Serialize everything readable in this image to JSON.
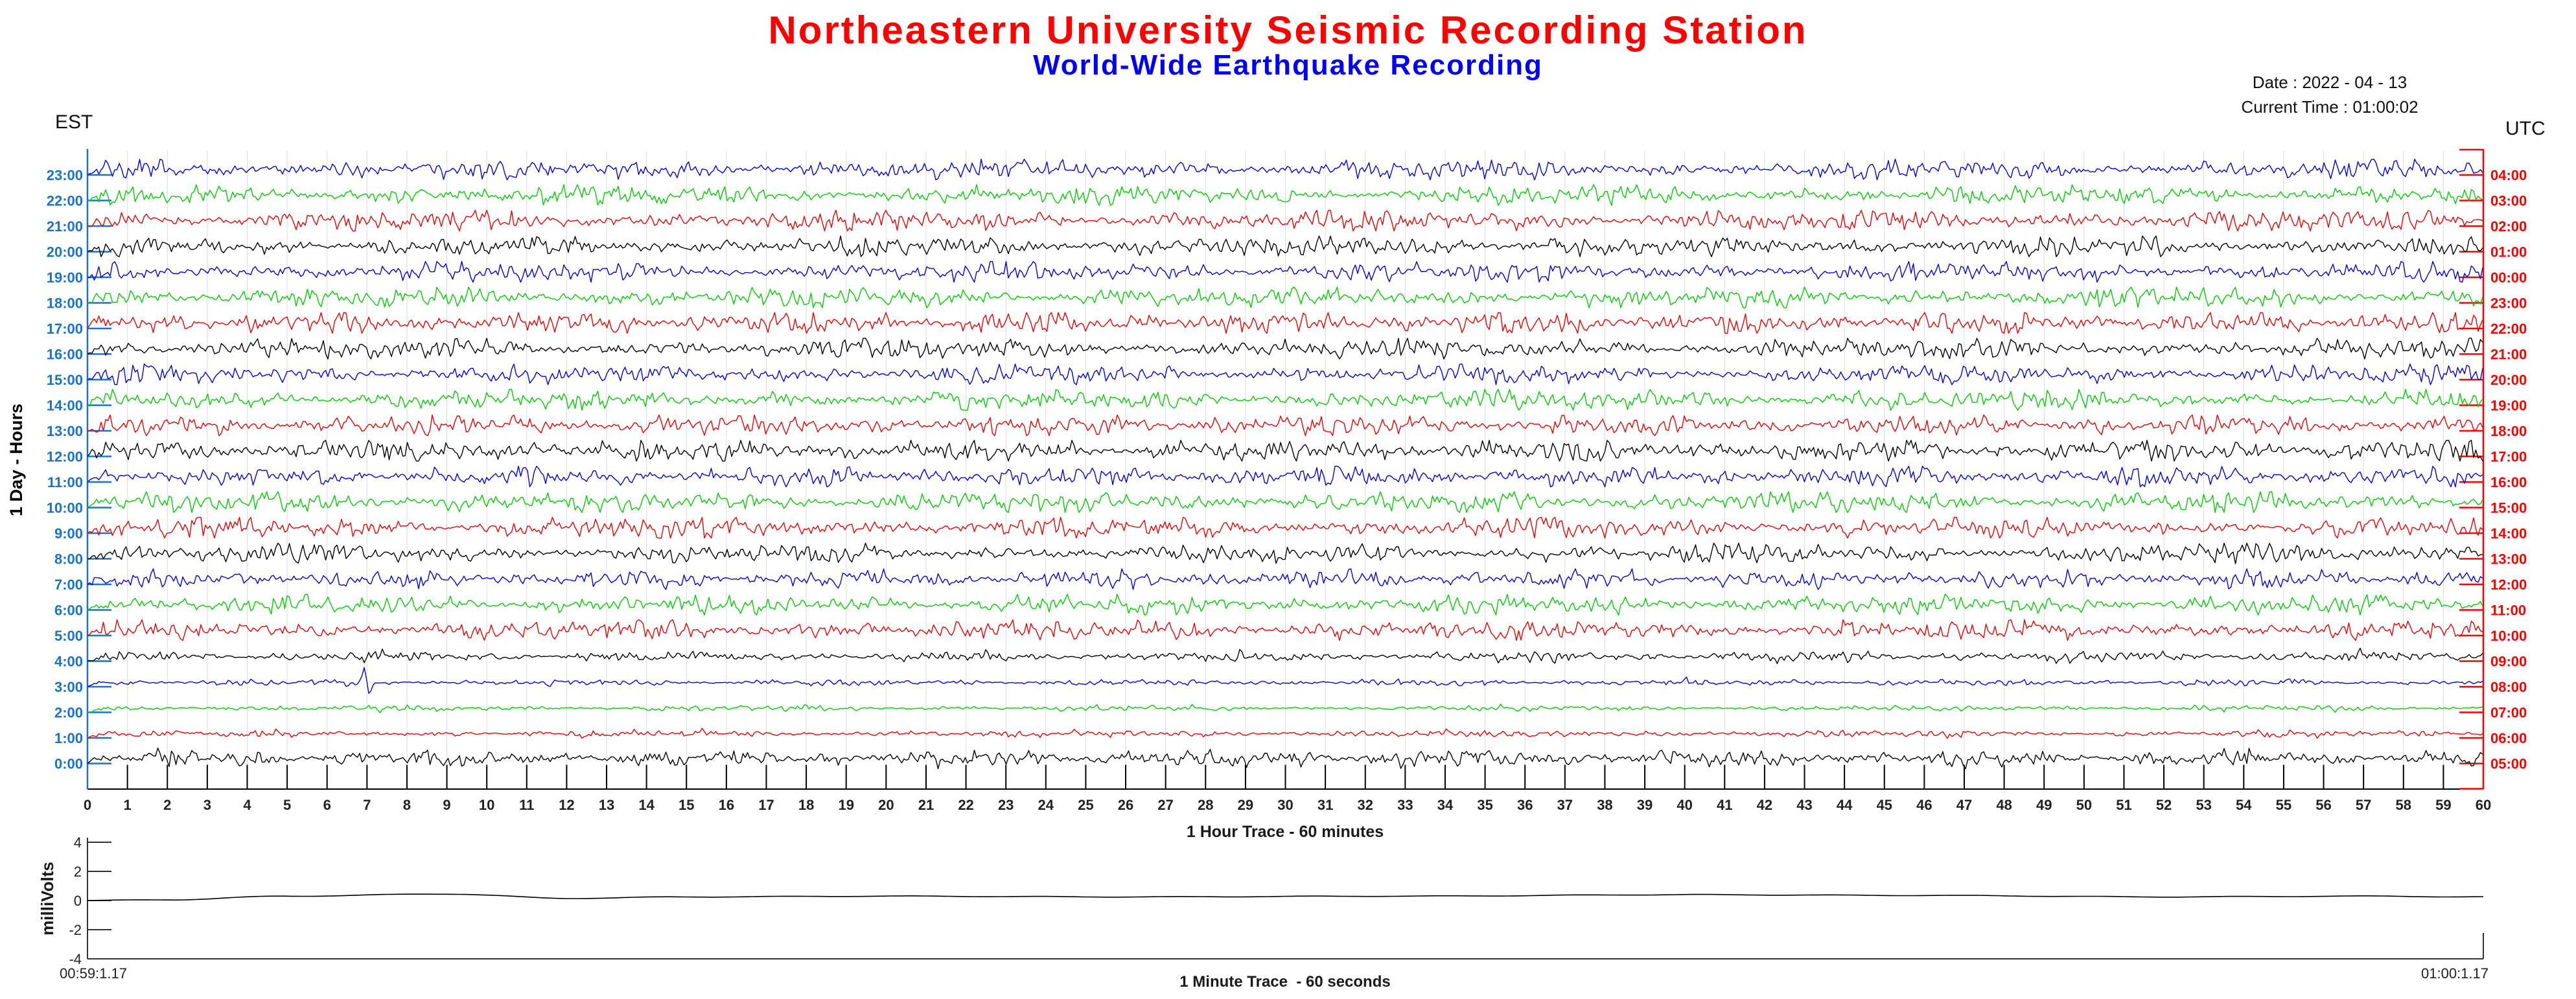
{
  "header": {
    "title": "Northeastern University Seismic Recording Station",
    "title_color": "#ff0000",
    "subtitle": "World-Wide Earthquake Recording",
    "subtitle_color": "#0000ff",
    "date_line": "Date : 2022 - 04 - 13",
    "time_line": "Current Time : 01:00:02",
    "left_timezone": "EST",
    "right_timezone": "UTC"
  },
  "colors": {
    "background": "#ffffff",
    "left_axis": "#1874c8",
    "right_axis": "#fb0000",
    "grid": "#dcdcdc",
    "bottom_axis": "#000000",
    "tick_label": "#222222",
    "trace_palette": {
      "blue": "#0000e6",
      "green": "#00cf00",
      "red": "#ef0000",
      "black": "#000000"
    }
  },
  "chart_data": [
    {
      "id": "helicorder",
      "type": "line",
      "title": "World-Wide Earthquake Recording",
      "xlabel": "1 Hour Trace - 60 minutes",
      "ylabel": "1 Day - Hours",
      "x_range_minutes": [
        0,
        60
      ],
      "x_tick_labels": [
        "0",
        "1",
        "2",
        "3",
        "4",
        "5",
        "6",
        "7",
        "8",
        "9",
        "10",
        "11",
        "12",
        "13",
        "14",
        "15",
        "16",
        "17",
        "18",
        "19",
        "20",
        "21",
        "22",
        "23",
        "24",
        "25",
        "26",
        "27",
        "28",
        "29",
        "30",
        "31",
        "32",
        "33",
        "34",
        "35",
        "36",
        "37",
        "38",
        "39",
        "40",
        "41",
        "42",
        "43",
        "44",
        "45",
        "46",
        "47",
        "48",
        "49",
        "50",
        "51",
        "52",
        "53",
        "54",
        "55",
        "56",
        "57",
        "58",
        "59",
        "60"
      ],
      "grid": {
        "vertical_line_every_minute": true,
        "horizontal": false
      },
      "legend": "none",
      "left_axis_labels_are_est_hours": true,
      "right_axis_labels_are_utc_hours": true,
      "rows_top_to_bottom": [
        {
          "est": "23:00",
          "utc": "04:00",
          "color": "blue",
          "amplitude": 0.95,
          "seed": 9011
        },
        {
          "est": "22:00",
          "utc": "03:00",
          "color": "green",
          "amplitude": 0.95,
          "seed": 4177
        },
        {
          "est": "21:00",
          "utc": "02:00",
          "color": "red",
          "amplitude": 1.0,
          "seed": 7309
        },
        {
          "est": "20:00",
          "utc": "01:00",
          "color": "black",
          "amplitude": 0.92,
          "seed": 2903
        },
        {
          "est": "19:00",
          "utc": "00:00",
          "color": "blue",
          "amplitude": 0.95,
          "seed": 6421
        },
        {
          "est": "18:00",
          "utc": "23:00",
          "color": "green",
          "amplitude": 0.95,
          "seed": 1531
        },
        {
          "est": "17:00",
          "utc": "22:00",
          "color": "red",
          "amplitude": 1.05,
          "seed": 8629
        },
        {
          "est": "16:00",
          "utc": "21:00",
          "color": "black",
          "amplitude": 0.95,
          "seed": 3797
        },
        {
          "est": "15:00",
          "utc": "20:00",
          "color": "blue",
          "amplitude": 0.9,
          "seed": 5519
        },
        {
          "est": "14:00",
          "utc": "19:00",
          "color": "green",
          "amplitude": 0.95,
          "seed": 9473
        },
        {
          "est": "13:00",
          "utc": "18:00",
          "color": "red",
          "amplitude": 1.0,
          "seed": 2251
        },
        {
          "est": "12:00",
          "utc": "17:00",
          "color": "black",
          "amplitude": 1.1,
          "seed": 7723
        },
        {
          "est": "11:00",
          "utc": "16:00",
          "color": "blue",
          "amplitude": 0.95,
          "seed": 4831
        },
        {
          "est": "10:00",
          "utc": "15:00",
          "color": "green",
          "amplitude": 1.0,
          "seed": 6067
        },
        {
          "est": "9:00",
          "utc": "14:00",
          "color": "red",
          "amplitude": 1.0,
          "seed": 1289
        },
        {
          "est": "8:00",
          "utc": "13:00",
          "color": "black",
          "amplitude": 0.9,
          "seed": 8191
        },
        {
          "est": "7:00",
          "utc": "12:00",
          "color": "blue",
          "amplitude": 0.85,
          "seed": 3517
        },
        {
          "est": "6:00",
          "utc": "11:00",
          "color": "green",
          "amplitude": 0.9,
          "seed": 9887
        },
        {
          "est": "5:00",
          "utc": "10:00",
          "color": "red",
          "amplitude": 0.95,
          "seed": 2647
        },
        {
          "est": "4:00",
          "utc": "09:00",
          "color": "black",
          "amplitude": 0.5,
          "seed": 5801
        },
        {
          "est": "3:00",
          "utc": "08:00",
          "color": "blue",
          "amplitude": 0.3,
          "seed": 7013,
          "spike": {
            "minute": 7,
            "height": 54
          }
        },
        {
          "est": "2:00",
          "utc": "07:00",
          "color": "green",
          "amplitude": 0.27,
          "seed": 1427
        },
        {
          "est": "1:00",
          "utc": "06:00",
          "color": "red",
          "amplitude": 0.33,
          "seed": 6311
        },
        {
          "est": "0:00",
          "utc": "05:00",
          "color": "black",
          "amplitude": 0.8,
          "seed": 3989
        }
      ]
    },
    {
      "id": "minute_trace",
      "type": "line",
      "xlabel": "1 Minute Trace  - 60 seconds",
      "ylabel": "milliVolts",
      "x_range_seconds": [
        0,
        60
      ],
      "ylim": [
        -4,
        4
      ],
      "y_ticks": [
        "4",
        "2",
        "0",
        "-2",
        "-4"
      ],
      "y_tick_values": [
        4,
        2,
        0,
        -2,
        -4
      ],
      "start_time_label": "00:59:1.17",
      "end_time_label": "01:00:1.17",
      "line_color": "#000000",
      "series_profile_sec_mv": [
        [
          0,
          0
        ],
        [
          2,
          0.05
        ],
        [
          5,
          0.3
        ],
        [
          9,
          0.45
        ],
        [
          12,
          0.15
        ],
        [
          15,
          0.25
        ],
        [
          20,
          0.3
        ],
        [
          26,
          0.25
        ],
        [
          33,
          0.3
        ],
        [
          40,
          0.4
        ],
        [
          46,
          0.35
        ],
        [
          52,
          0.25
        ],
        [
          57,
          0.3
        ],
        [
          60,
          0.25
        ]
      ]
    }
  ]
}
